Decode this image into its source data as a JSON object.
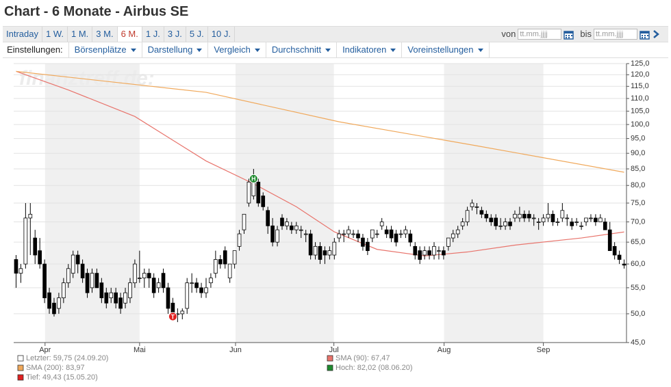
{
  "header": {
    "title": "Chart - 6 Monate - Airbus SE"
  },
  "tabs": [
    "Intraday",
    "1 W.",
    "1 M.",
    "3 M.",
    "6 M.",
    "1 J.",
    "3 J.",
    "5 J.",
    "10 J."
  ],
  "date_range": {
    "from_label": "von",
    "from_placeholder": "tt.mm.jjjj",
    "to_label": "bis",
    "to_placeholder": "tt.mm.jjjj"
  },
  "settings": {
    "label": "Einstellungen:",
    "menus": [
      "Börsenplätze",
      "Darstellung",
      "Vergleich",
      "Durchschnitt",
      "Indikatoren",
      "Voreinstellungen"
    ]
  },
  "chart_data": {
    "type": "candlestick",
    "watermark": "finanztreff.de:",
    "log_scale": true,
    "grid": true,
    "up_color": "#ffffff",
    "down_color": "#000000",
    "xlim": [
      -0.5,
      128.5
    ],
    "xticks": [
      {
        "value": 6.1,
        "label": "Apr"
      },
      {
        "value": 26.0,
        "label": "Mai"
      },
      {
        "value": 46.2,
        "label": "Jun"
      },
      {
        "value": 66.9,
        "label": "Jul"
      },
      {
        "value": 90.1,
        "label": "Aug"
      },
      {
        "value": 111.0,
        "label": "Sep"
      }
    ],
    "ylim": [
      45,
      125
    ],
    "yticks": [
      {
        "value": 125,
        "label": "125,0"
      },
      {
        "value": 120,
        "label": "120,0"
      },
      {
        "value": 115,
        "label": "115,0"
      },
      {
        "value": 110,
        "label": "110,0"
      },
      {
        "value": 105,
        "label": "105,0"
      },
      {
        "value": 100,
        "label": "100,0"
      },
      {
        "value": 95,
        "label": "95,0"
      },
      {
        "value": 90,
        "label": "90,0"
      },
      {
        "value": 85,
        "label": "85,0"
      },
      {
        "value": 80,
        "label": "80,0"
      },
      {
        "value": 75,
        "label": "75,0"
      },
      {
        "value": 70,
        "label": "70,0"
      },
      {
        "value": 65,
        "label": "65,0"
      },
      {
        "value": 60,
        "label": "60,0"
      },
      {
        "value": 55,
        "label": "55,0"
      },
      {
        "value": 50,
        "label": "50,0"
      },
      {
        "value": 45,
        "label": "45,0"
      }
    ],
    "candles": [
      [
        61,
        62,
        55,
        58
      ],
      [
        58,
        60,
        56,
        59
      ],
      [
        60,
        75,
        59,
        71
      ],
      [
        71,
        75,
        62,
        72
      ],
      [
        66,
        68,
        60,
        62
      ],
      [
        63,
        66,
        59,
        60
      ],
      [
        60,
        61,
        52,
        53
      ],
      [
        54,
        55,
        50,
        51
      ],
      [
        52,
        53,
        49.5,
        50
      ],
      [
        51,
        54,
        50,
        53
      ],
      [
        53,
        57,
        52,
        56
      ],
      [
        56,
        60,
        55,
        59
      ],
      [
        58,
        63,
        57,
        62
      ],
      [
        62,
        63,
        58,
        60
      ],
      [
        60,
        61,
        56,
        57
      ],
      [
        58,
        59,
        53,
        54
      ],
      [
        55,
        59,
        54,
        58
      ],
      [
        58,
        59,
        55,
        55
      ],
      [
        56,
        57,
        52,
        53
      ],
      [
        54,
        55,
        51,
        52
      ],
      [
        53,
        55,
        52,
        54
      ],
      [
        54,
        55,
        51,
        52
      ],
      [
        53,
        54,
        50,
        51
      ],
      [
        52,
        55,
        51,
        54
      ],
      [
        53,
        57,
        52,
        56
      ],
      [
        56,
        61,
        55,
        60
      ],
      [
        57,
        63,
        56,
        57
      ],
      [
        57,
        59,
        55,
        58
      ],
      [
        58,
        59,
        55,
        57
      ],
      [
        57,
        58,
        53,
        54
      ],
      [
        55,
        57,
        54,
        56
      ],
      [
        58,
        59,
        54,
        55
      ],
      [
        55,
        56,
        50,
        51
      ],
      [
        52,
        53,
        49.4,
        49.5
      ],
      [
        50,
        51,
        48.5,
        50
      ],
      [
        50,
        51,
        49,
        50.5
      ],
      [
        51,
        57,
        50,
        56
      ],
      [
        56,
        58,
        54,
        56
      ],
      [
        56,
        57,
        54,
        55
      ],
      [
        55,
        56,
        53,
        54
      ],
      [
        54,
        57,
        53,
        55
      ],
      [
        56,
        58,
        55,
        57
      ],
      [
        58,
        63,
        57,
        61
      ],
      [
        61,
        62,
        59,
        60
      ],
      [
        63,
        64,
        59,
        60
      ],
      [
        57,
        60,
        56,
        60
      ],
      [
        60,
        63,
        59,
        63
      ],
      [
        64,
        68,
        63,
        67
      ],
      [
        68,
        72,
        67,
        72
      ],
      [
        75,
        82,
        74,
        81
      ],
      [
        77,
        85,
        76,
        82
      ],
      [
        81,
        82,
        74,
        75
      ],
      [
        77,
        78,
        73,
        74
      ],
      [
        73,
        74,
        67,
        69
      ],
      [
        69,
        71,
        64,
        65
      ],
      [
        65,
        69,
        64,
        68
      ],
      [
        71,
        72,
        68,
        69
      ],
      [
        69,
        71,
        68,
        70
      ],
      [
        69,
        70,
        67,
        68
      ],
      [
        68,
        70,
        67,
        69
      ],
      [
        68,
        69,
        66,
        68
      ],
      [
        67,
        68,
        65,
        67
      ],
      [
        67,
        68,
        61,
        62
      ],
      [
        62,
        65,
        61,
        64
      ],
      [
        64,
        65,
        60,
        61
      ],
      [
        63,
        64,
        60,
        62
      ],
      [
        62,
        64,
        61,
        63
      ],
      [
        62,
        66,
        61,
        65
      ],
      [
        66,
        68,
        65,
        67
      ],
      [
        67,
        68,
        65,
        67
      ],
      [
        67,
        69,
        66,
        68
      ],
      [
        67,
        68,
        66,
        67
      ],
      [
        67,
        68,
        65,
        66
      ],
      [
        66,
        67,
        63,
        64
      ],
      [
        65,
        66,
        62,
        63
      ],
      [
        66,
        68,
        65,
        68
      ],
      [
        67,
        68,
        66,
        67
      ],
      [
        69,
        71,
        68,
        70
      ],
      [
        68,
        69,
        66,
        67
      ],
      [
        68,
        69,
        65,
        66
      ],
      [
        67,
        68,
        64,
        65
      ],
      [
        67,
        68,
        66,
        67
      ],
      [
        67,
        69,
        66,
        68
      ],
      [
        67,
        68,
        64,
        65
      ],
      [
        64,
        65,
        61,
        62
      ],
      [
        63,
        64,
        60,
        61
      ],
      [
        62,
        64,
        61,
        63
      ],
      [
        63,
        64,
        61,
        62
      ],
      [
        62,
        65,
        61,
        64
      ],
      [
        63,
        64,
        61,
        63
      ],
      [
        63,
        64,
        61,
        62
      ],
      [
        64,
        66,
        63,
        66
      ],
      [
        66,
        68,
        65,
        67
      ],
      [
        67,
        69,
        66,
        68
      ],
      [
        69,
        71,
        68,
        70
      ],
      [
        70,
        74,
        69,
        73
      ],
      [
        74,
        76,
        73,
        75
      ],
      [
        74,
        75,
        72,
        74
      ],
      [
        73,
        74,
        71,
        72
      ],
      [
        72,
        73,
        70,
        71
      ],
      [
        71,
        72,
        69,
        70
      ],
      [
        71,
        72,
        68,
        69
      ],
      [
        69,
        71,
        68,
        69
      ],
      [
        69,
        71,
        68,
        70
      ],
      [
        70,
        71,
        68,
        69
      ],
      [
        71,
        73,
        70,
        72
      ],
      [
        71,
        74,
        70,
        72
      ],
      [
        72,
        73,
        70,
        71
      ],
      [
        72,
        73,
        70,
        71
      ],
      [
        71,
        72,
        69,
        71
      ],
      [
        70,
        71,
        68,
        70
      ],
      [
        70,
        72,
        69,
        71
      ],
      [
        71,
        75,
        70,
        72
      ],
      [
        72,
        73,
        69,
        70
      ],
      [
        70,
        71,
        69,
        70
      ],
      [
        71,
        75,
        70,
        73
      ],
      [
        71,
        72,
        69,
        71
      ],
      [
        70,
        71,
        68,
        69
      ],
      [
        70,
        71,
        69,
        70
      ],
      [
        69,
        70,
        68,
        69
      ],
      [
        70,
        71,
        69,
        71
      ],
      [
        71,
        72,
        70,
        71
      ],
      [
        71,
        72,
        69,
        70
      ],
      [
        70,
        72,
        70,
        71
      ],
      [
        70,
        71,
        68,
        68
      ],
      [
        68,
        70,
        63,
        63
      ],
      [
        64,
        65,
        61,
        62
      ],
      [
        62,
        63,
        60,
        61
      ],
      [
        60,
        61,
        59,
        59.75
      ]
    ],
    "series": [
      {
        "color": "#e8736b",
        "x": [
          0,
          11,
          25,
          40,
          50,
          59,
          67,
          76,
          86,
          95,
          105,
          119,
          128
        ],
        "values": [
          121.5,
          113.5,
          103,
          87.5,
          80.5,
          74,
          67.5,
          63.3,
          61.8,
          62.7,
          64.3,
          66,
          67.47
        ]
      },
      {
        "color": "#f0a85a",
        "x": [
          0,
          40,
          68,
          97,
          128
        ],
        "values": [
          121.5,
          112.5,
          101,
          92.5,
          83.97
        ]
      }
    ],
    "high_marker": "H",
    "high_marker_color": "#1e8a2e",
    "low_marker": "T",
    "low_marker_color": "#e02020",
    "legend": [
      {
        "label": "Letzter: 59,75 (24.09.20)",
        "color": "#ffffff"
      },
      {
        "label": "SMA (90): 67,47",
        "color": "#e8736b"
      },
      {
        "label": "SMA (200): 83,97",
        "color": "#f0a85a"
      },
      {
        "label": "Hoch: 82,02 (08.06.20)",
        "color": "#1e8a2e"
      },
      {
        "label": "Tief: 49,43 (15.05.20)",
        "color": "#e02020"
      }
    ]
  }
}
